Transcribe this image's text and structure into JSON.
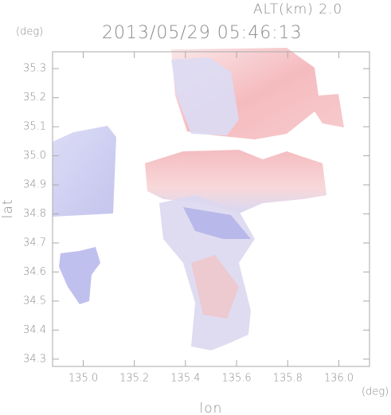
{
  "chart_data": {
    "type": "radar-map",
    "altitude_label": "ALT(km) 2.0",
    "title": "2013/05/29 05:46:13",
    "x_label": "lon",
    "y_label": "lat",
    "x_unit": "(deg)",
    "y_unit": "(deg)",
    "xlim": [
      134.88,
      136.12
    ],
    "ylim": [
      34.275,
      35.358
    ],
    "xticks": [
      {
        "value": 135,
        "label": "135.0"
      },
      135.2,
      135.4,
      135.6,
      135.8,
      {
        "value": 136,
        "label": "136.0"
      }
    ],
    "yticks": [
      34.3,
      34.4,
      34.5,
      34.6,
      34.7,
      34.8,
      34.9,
      {
        "value": 35,
        "label": "35.0"
      },
      35.1,
      35.2,
      35.3
    ]
  }
}
